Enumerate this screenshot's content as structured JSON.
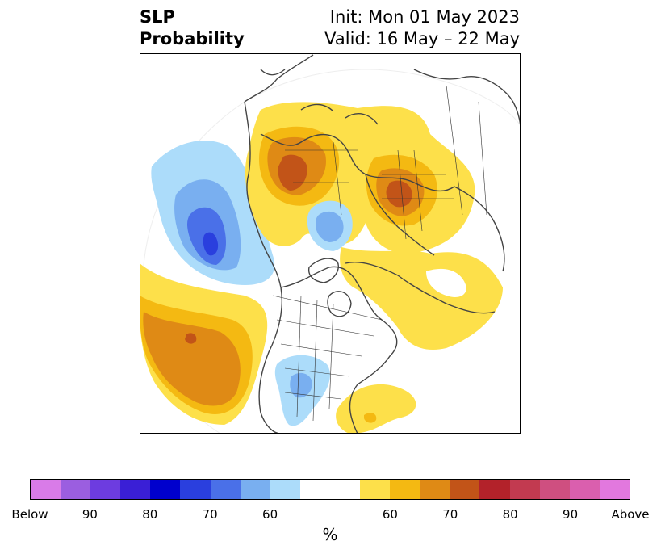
{
  "title": {
    "variable_line1": "SLP",
    "variable_line2": "Probability",
    "init_line": "Init: Mon 01 May 2023",
    "valid_line": "Valid: 16 May – 22 May"
  },
  "colorbar": {
    "unit": "%",
    "colors": [
      "#d97be8",
      "#9b5ee0",
      "#6d3ce0",
      "#3a1fd6",
      "#0000cd",
      "#2a3fde",
      "#4a70e8",
      "#79aff0",
      "#acdcfa",
      "#ffffff",
      "#ffffff",
      "#fde04a",
      "#f4b912",
      "#df8a15",
      "#c25418",
      "#b3222a",
      "#c23a50",
      "#cf4f80",
      "#da5fae",
      "#e278de"
    ],
    "tick_labels": [
      "Below",
      "90",
      "80",
      "70",
      "60",
      "60",
      "70",
      "80",
      "90",
      "Above"
    ]
  }
}
